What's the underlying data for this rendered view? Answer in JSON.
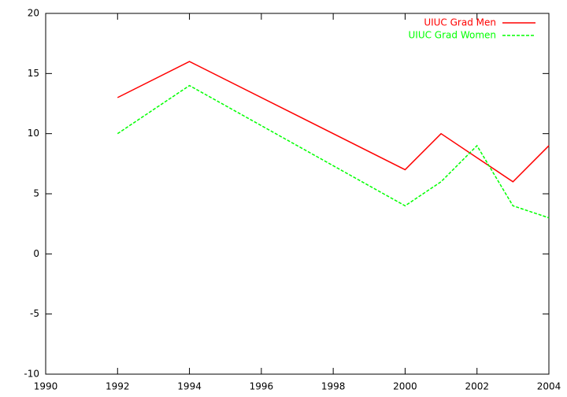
{
  "chart_data": {
    "type": "line",
    "x": [
      1992,
      1994,
      2000,
      2001,
      2002,
      2003,
      2004
    ],
    "series": [
      {
        "name": "UIUC Grad Men",
        "color": "#ff0000",
        "dash": false,
        "values": [
          13,
          16,
          7,
          10,
          8,
          6,
          9
        ]
      },
      {
        "name": "UIUC Grad Women",
        "color": "#00ff00",
        "dash": true,
        "values": [
          10,
          14,
          4,
          6,
          9,
          4,
          3
        ]
      }
    ],
    "xlim": [
      1990,
      2004
    ],
    "xticks": [
      1990,
      1992,
      1994,
      1996,
      1998,
      2000,
      2002,
      2004
    ],
    "ylim": [
      -10,
      20
    ],
    "yticks": [
      -10,
      -5,
      0,
      5,
      10,
      15,
      20
    ],
    "grid": false,
    "legend": "top-right"
  }
}
